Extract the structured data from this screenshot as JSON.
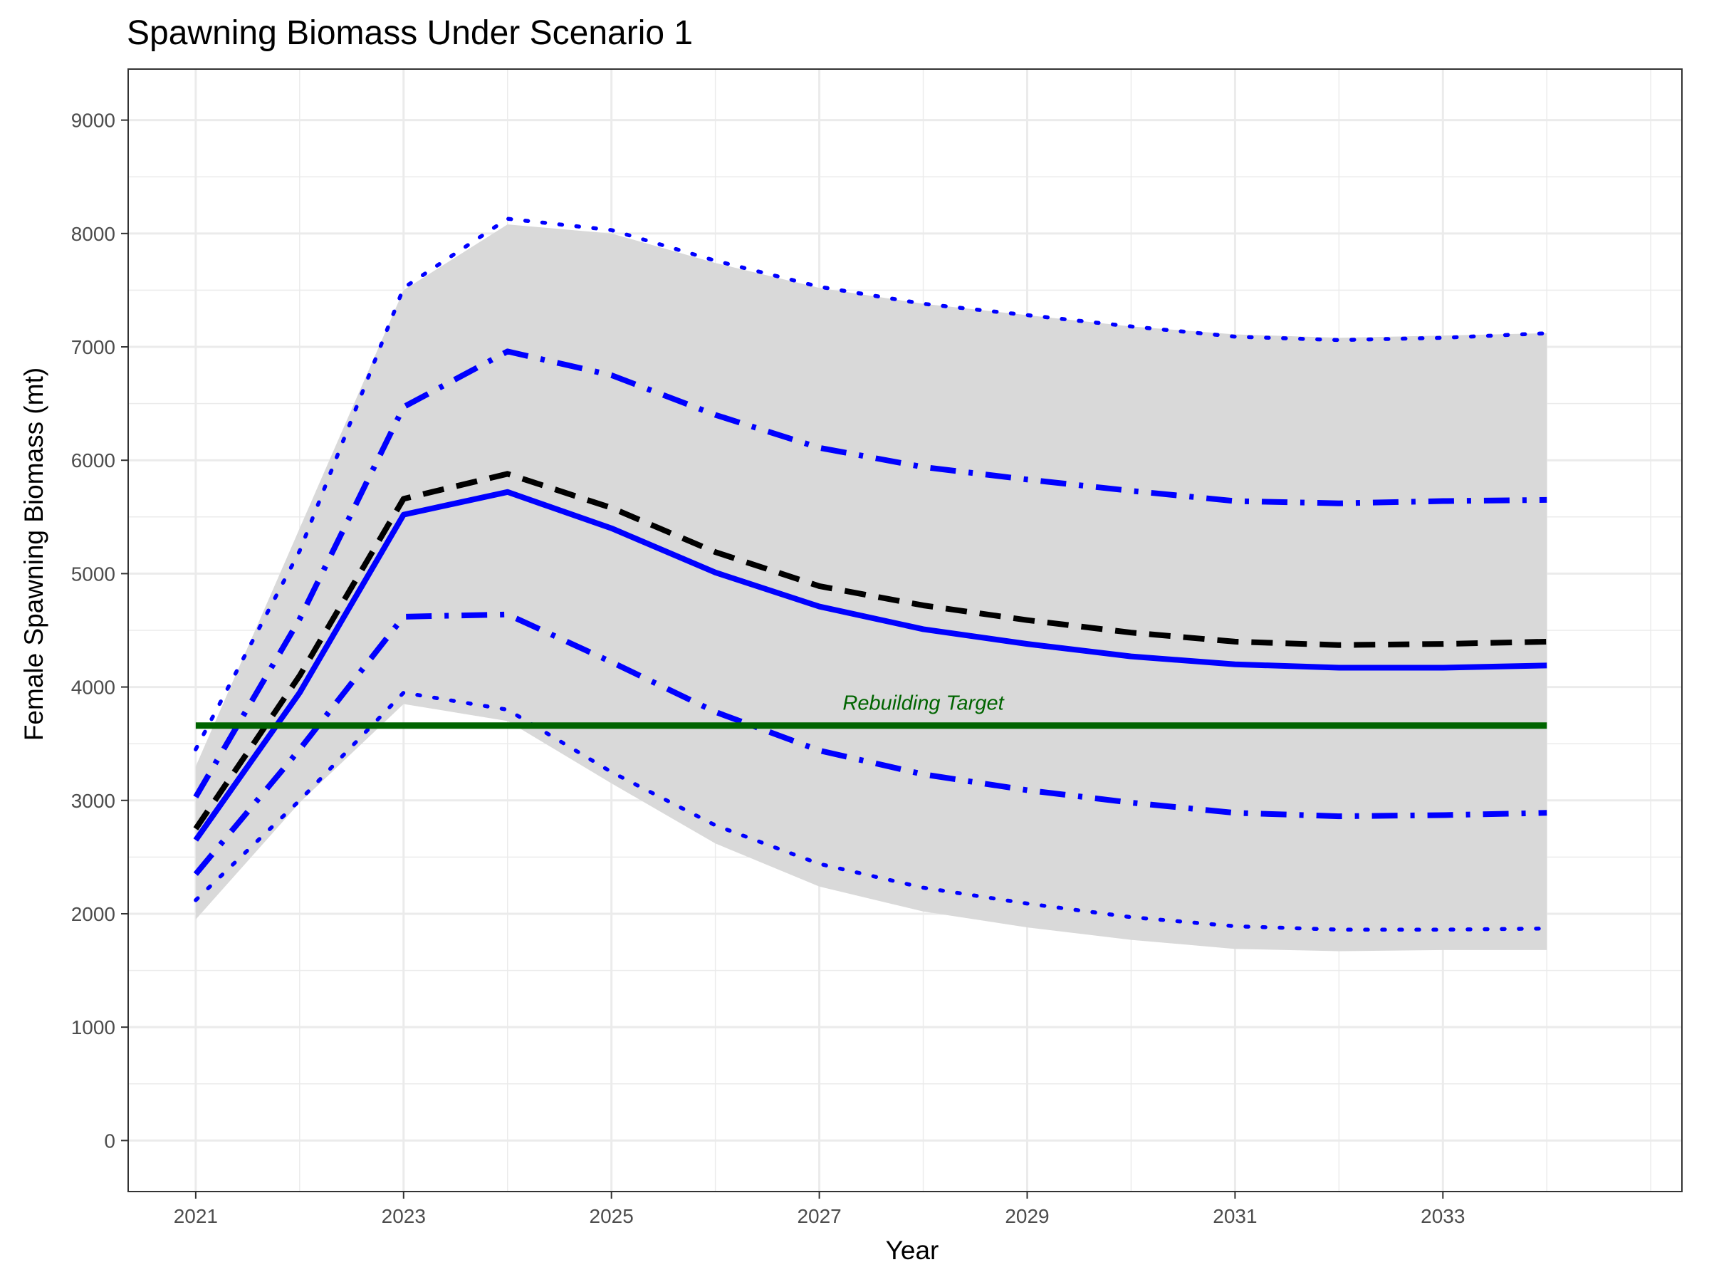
{
  "chart_data": {
    "type": "line",
    "title": "Spawning Biomass Under Scenario 1",
    "xlabel": "Year",
    "ylabel": "Female Spawning Biomass (mt)",
    "xlim": [
      2020.35,
      2035.3
    ],
    "ylim": [
      -450,
      9450
    ],
    "x_ticks": [
      2021,
      2023,
      2025,
      2027,
      2029,
      2031,
      2033
    ],
    "y_ticks": [
      0,
      1000,
      2000,
      3000,
      4000,
      5000,
      6000,
      7000,
      8000,
      9000
    ],
    "grid": true,
    "legend": "none",
    "x": [
      2021,
      2022,
      2023,
      2024,
      2025,
      2026,
      2027,
      2028,
      2029,
      2030,
      2031,
      2032,
      2033,
      2034
    ],
    "band": {
      "lower": [
        1950,
        2980,
        3850,
        3700,
        3150,
        2620,
        2240,
        2020,
        1880,
        1770,
        1690,
        1670,
        1680,
        1680
      ],
      "upper": [
        3300,
        5400,
        7500,
        8080,
        8000,
        7740,
        7520,
        7380,
        7280,
        7180,
        7110,
        7080,
        7100,
        7120
      ],
      "color": "#d9d9d9"
    },
    "series": [
      {
        "values": [
          2120,
          3000,
          3950,
          3800,
          3250,
          2780,
          2440,
          2230,
          2090,
          1970,
          1890,
          1860,
          1860,
          1870
        ],
        "color": "#0000ff",
        "style": "dotted"
      },
      {
        "values": [
          2350,
          3450,
          4620,
          4640,
          4220,
          3780,
          3440,
          3230,
          3090,
          2980,
          2890,
          2860,
          2870,
          2890
        ],
        "color": "#0000ff",
        "style": "dotdash"
      },
      {
        "values": [
          2650,
          3950,
          5520,
          5720,
          5400,
          5010,
          4710,
          4510,
          4380,
          4270,
          4200,
          4170,
          4170,
          4190
        ],
        "color": "#0000ff",
        "style": "solid"
      },
      {
        "values": [
          2750,
          4100,
          5660,
          5880,
          5580,
          5190,
          4890,
          4720,
          4590,
          4480,
          4400,
          4370,
          4380,
          4400
        ],
        "color": "#000000",
        "style": "dashed"
      },
      {
        "values": [
          3030,
          4600,
          6470,
          6960,
          6750,
          6400,
          6110,
          5940,
          5830,
          5730,
          5640,
          5620,
          5640,
          5650
        ],
        "color": "#0000ff",
        "style": "dotdash"
      },
      {
        "values": [
          3450,
          5200,
          7520,
          8130,
          8030,
          7760,
          7530,
          7380,
          7280,
          7180,
          7090,
          7060,
          7080,
          7120
        ],
        "color": "#0000ff",
        "style": "dotted"
      }
    ],
    "reference_line": {
      "value": 3660,
      "color": "#006400"
    },
    "annotations": [
      {
        "text": "Rebuilding Target",
        "x": 2028,
        "y": 3800,
        "color": "#006400"
      }
    ]
  }
}
